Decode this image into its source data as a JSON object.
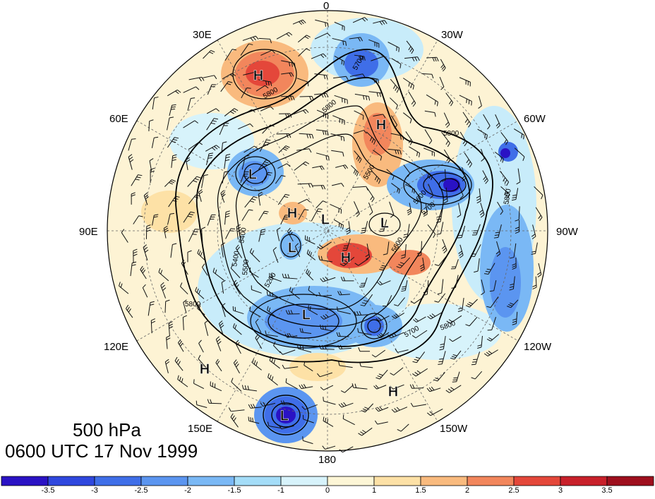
{
  "map": {
    "longitude_labels": [
      {
        "id": "lon-0",
        "text": "0"
      },
      {
        "id": "lon-30w",
        "text": "30W"
      },
      {
        "id": "lon-60w",
        "text": "60W"
      },
      {
        "id": "lon-90w",
        "text": "90W"
      },
      {
        "id": "lon-120w",
        "text": "120W"
      },
      {
        "id": "lon-150w",
        "text": "150W"
      },
      {
        "id": "lon-180",
        "text": "180"
      },
      {
        "id": "lon-150e",
        "text": "150E"
      },
      {
        "id": "lon-120e",
        "text": "120E"
      },
      {
        "id": "lon-90e",
        "text": "90E"
      },
      {
        "id": "lon-60e",
        "text": "60E"
      },
      {
        "id": "lon-30e",
        "text": "30E"
      }
    ],
    "pressure_centers": [
      {
        "type": "H"
      },
      {
        "type": "H"
      },
      {
        "type": "H"
      },
      {
        "type": "H"
      },
      {
        "type": "H"
      },
      {
        "type": "H"
      },
      {
        "type": "L"
      },
      {
        "type": "L"
      },
      {
        "type": "L"
      },
      {
        "type": "L"
      },
      {
        "type": "L"
      },
      {
        "type": "L"
      }
    ],
    "contour_labels": [
      "5700",
      "5800",
      "5800",
      "5800",
      "5500",
      "5600",
      "5400",
      "5500",
      "5400",
      "5200",
      "5700",
      "5800",
      "5800",
      "5600",
      "5700",
      "5800"
    ]
  },
  "title": {
    "level": "500 hPa",
    "time": "0600 UTC 17 Nov 1999"
  },
  "colorbar": {
    "ticks": [
      "-3.5",
      "-3",
      "-2.5",
      "-2",
      "-1.5",
      "-1",
      "0",
      "1",
      "1.5",
      "2",
      "2.5",
      "3",
      "3.5"
    ],
    "colors": [
      "#2a12c4",
      "#2f47de",
      "#3f6ee8",
      "#5b95f0",
      "#7ab8f5",
      "#a4ddf8",
      "#d7f3fb",
      "#fdf6d6",
      "#fde1a6",
      "#f9ba7e",
      "#f2865c",
      "#e4473a",
      "#c8202a",
      "#9e0f1d"
    ]
  }
}
